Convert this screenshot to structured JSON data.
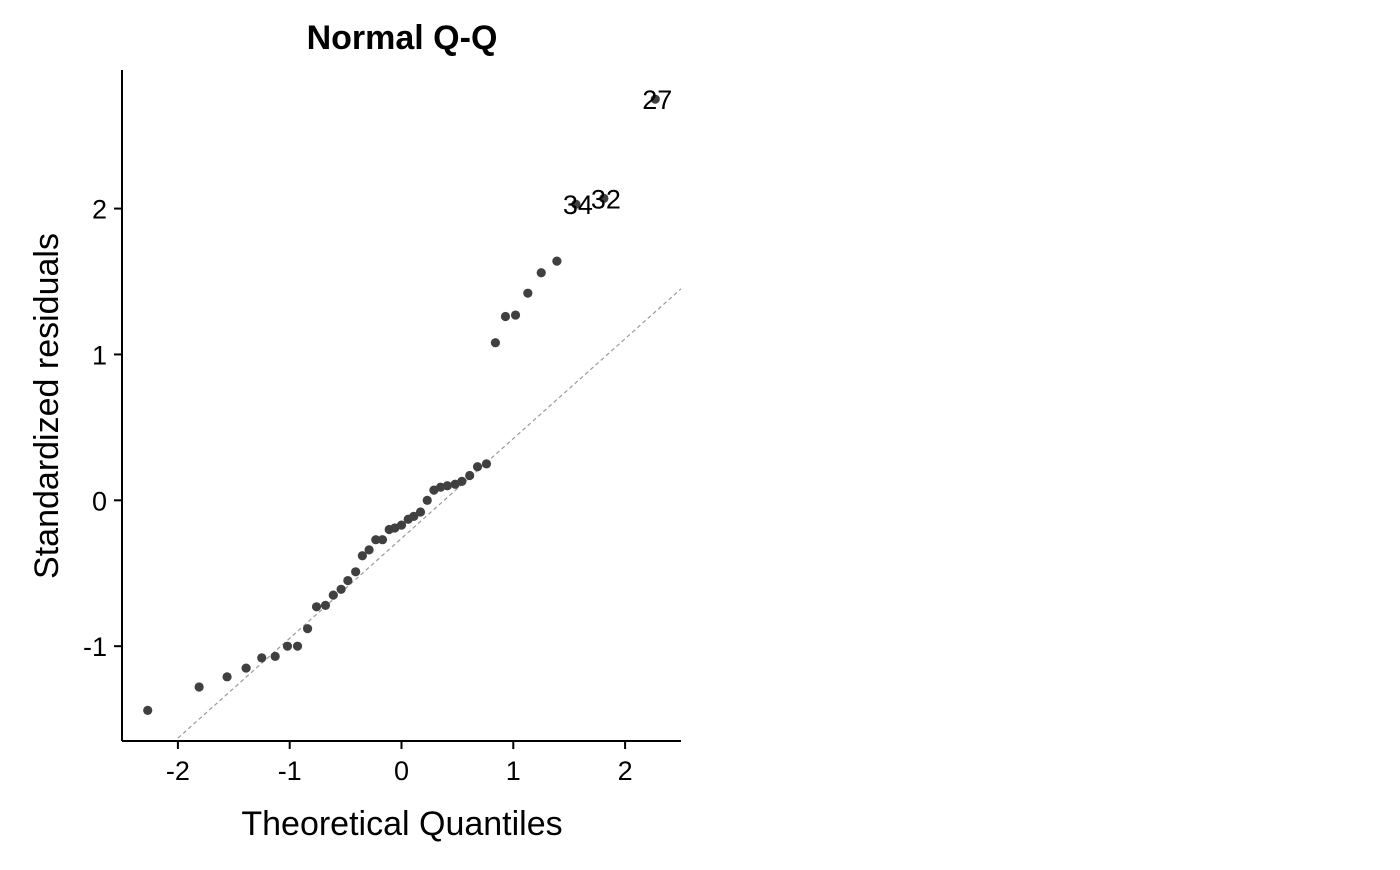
{
  "chart_data": {
    "type": "scatter",
    "title": "Normal Q-Q",
    "xlabel": "Theoretical Quantiles",
    "ylabel": "Standardized residuals",
    "xlim": [
      -2.5,
      2.5
    ],
    "ylim": [
      -1.65,
      2.95
    ],
    "xticks": [
      -2,
      -1,
      0,
      1,
      2
    ],
    "xtick_labels": [
      "-2",
      "-1",
      "0",
      "1",
      "2"
    ],
    "yticks": [
      -1,
      0,
      1,
      2
    ],
    "ytick_labels": [
      "-1",
      "0",
      "1",
      "2"
    ],
    "grid": false,
    "legend": "none",
    "point_color": "#404040",
    "reference_line": {
      "style": "dashed",
      "color": "#9a9a9a",
      "points": [
        [
          -2.0,
          -1.63
        ],
        [
          2.5,
          1.45
        ]
      ]
    },
    "points": [
      {
        "x": -2.27,
        "y": -1.44
      },
      {
        "x": -1.81,
        "y": -1.28
      },
      {
        "x": -1.56,
        "y": -1.21
      },
      {
        "x": -1.39,
        "y": -1.15
      },
      {
        "x": -1.25,
        "y": -1.08
      },
      {
        "x": -1.13,
        "y": -1.07
      },
      {
        "x": -1.02,
        "y": -1.0
      },
      {
        "x": -0.93,
        "y": -1.0
      },
      {
        "x": -0.84,
        "y": -0.88
      },
      {
        "x": -0.76,
        "y": -0.73
      },
      {
        "x": -0.68,
        "y": -0.72
      },
      {
        "x": -0.61,
        "y": -0.65
      },
      {
        "x": -0.54,
        "y": -0.61
      },
      {
        "x": -0.48,
        "y": -0.55
      },
      {
        "x": -0.41,
        "y": -0.49
      },
      {
        "x": -0.35,
        "y": -0.38
      },
      {
        "x": -0.29,
        "y": -0.34
      },
      {
        "x": -0.23,
        "y": -0.27
      },
      {
        "x": -0.17,
        "y": -0.27
      },
      {
        "x": -0.11,
        "y": -0.2
      },
      {
        "x": -0.06,
        "y": -0.19
      },
      {
        "x": 0.0,
        "y": -0.17
      },
      {
        "x": 0.06,
        "y": -0.13
      },
      {
        "x": 0.11,
        "y": -0.11
      },
      {
        "x": 0.17,
        "y": -0.08
      },
      {
        "x": 0.23,
        "y": 0.0
      },
      {
        "x": 0.29,
        "y": 0.07
      },
      {
        "x": 0.35,
        "y": 0.09
      },
      {
        "x": 0.41,
        "y": 0.1
      },
      {
        "x": 0.48,
        "y": 0.11
      },
      {
        "x": 0.54,
        "y": 0.13
      },
      {
        "x": 0.61,
        "y": 0.17
      },
      {
        "x": 0.68,
        "y": 0.23
      },
      {
        "x": 0.76,
        "y": 0.25
      },
      {
        "x": 0.84,
        "y": 1.08
      },
      {
        "x": 0.93,
        "y": 1.26
      },
      {
        "x": 1.02,
        "y": 1.27
      },
      {
        "x": 1.13,
        "y": 1.42
      },
      {
        "x": 1.25,
        "y": 1.56
      },
      {
        "x": 1.39,
        "y": 1.64
      },
      {
        "x": 1.56,
        "y": 2.03,
        "label": "34"
      },
      {
        "x": 1.81,
        "y": 2.07,
        "label": "32"
      },
      {
        "x": 2.27,
        "y": 2.75,
        "label": "27"
      }
    ]
  }
}
